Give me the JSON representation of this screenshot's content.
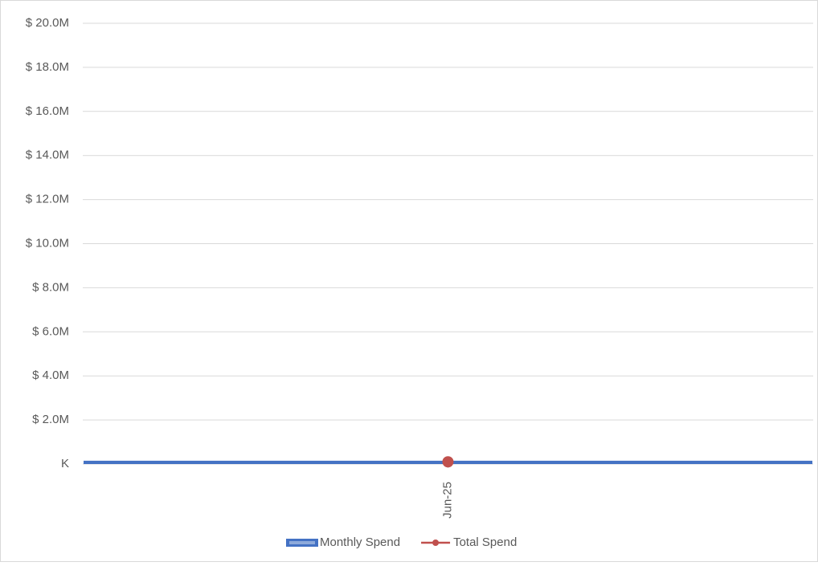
{
  "chart_data": {
    "type": "combo",
    "categories": [
      "Jun-25"
    ],
    "series": [
      {
        "name": "Monthly Spend",
        "type": "bar",
        "color": "#4472c4",
        "values": [
          150000
        ]
      },
      {
        "name": "Total Spend",
        "type": "line",
        "color": "#c0504d",
        "values": [
          100000
        ]
      }
    ],
    "ylim": [
      0,
      20000000
    ],
    "yticks": [
      {
        "value": 0,
        "label": "K"
      },
      {
        "value": 2000000,
        "label": "$ 2.0M"
      },
      {
        "value": 4000000,
        "label": "$ 4.0M"
      },
      {
        "value": 6000000,
        "label": "$ 6.0M"
      },
      {
        "value": 8000000,
        "label": "$ 8.0M"
      },
      {
        "value": 10000000,
        "label": "$ 10.0M"
      },
      {
        "value": 12000000,
        "label": "$ 12.0M"
      },
      {
        "value": 14000000,
        "label": "$ 14.0M"
      },
      {
        "value": 16000000,
        "label": "$ 16.0M"
      },
      {
        "value": 18000000,
        "label": "$ 18.0M"
      },
      {
        "value": 20000000,
        "label": "$ 20.0M"
      }
    ],
    "grid": true,
    "legend": "bottom"
  }
}
